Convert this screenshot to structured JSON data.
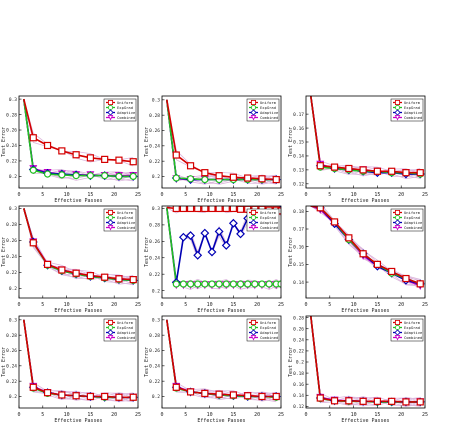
{
  "figure": {
    "background": "#ffffff"
  },
  "legend_labels": [
    "Uniform",
    "ExpGrad",
    "Adaptive",
    "Combined"
  ],
  "colors": {
    "Uniform": "#d40000",
    "ExpGrad": "#22c022",
    "Adaptive": "#0000b4",
    "Combined": "#c800c8",
    "spread": "#dcb6dc"
  },
  "chart_data": [
    {
      "type": "line",
      "xlabel": "Effective Passes",
      "ylabel": "Test Error",
      "xlim": [
        0,
        25
      ],
      "ylim": [
        0.185,
        0.304
      ],
      "xticks": [
        "0",
        "5",
        "10",
        "15",
        "20",
        "25"
      ],
      "yticks": [
        {
          "v": 0.2,
          "label": "0.2"
        },
        {
          "v": 0.22,
          "label": "0.22"
        },
        {
          "v": 0.24,
          "label": "0.24"
        },
        {
          "v": 0.26,
          "label": "0.26"
        },
        {
          "v": 0.28,
          "label": "0.28"
        },
        {
          "v": 0.3,
          "label": "0.3"
        }
      ],
      "x": [
        1,
        3,
        6,
        9,
        12,
        15,
        18,
        21,
        24
      ],
      "series": [
        {
          "name": "Uniform",
          "values": [
            0.3,
            0.25,
            0.24,
            0.233,
            0.228,
            0.224,
            0.222,
            0.221,
            0.219
          ]
        },
        {
          "name": "ExpGrad",
          "values": [
            0.3,
            0.208,
            0.203,
            0.202,
            0.201,
            0.201,
            0.201,
            0.2,
            0.2
          ]
        },
        {
          "name": "Adaptive",
          "values": [
            0.3,
            0.209,
            0.204,
            0.203,
            0.202,
            0.201,
            0.201,
            0.2,
            0.2
          ]
        },
        {
          "name": "Combined",
          "values": [
            0.3,
            0.21,
            0.205,
            0.203,
            0.202,
            0.202,
            0.201,
            0.201,
            0.201
          ]
        }
      ]
    },
    {
      "type": "line",
      "xlabel": "Effective Passes",
      "ylabel": "Test Error",
      "xlim": [
        0,
        25
      ],
      "ylim": [
        0.185,
        0.305
      ],
      "xticks": [
        "0",
        "5",
        "10",
        "15",
        "20",
        "25"
      ],
      "yticks": [
        {
          "v": 0.2,
          "label": "0.2"
        },
        {
          "v": 0.22,
          "label": "0.22"
        },
        {
          "v": 0.24,
          "label": "0.24"
        },
        {
          "v": 0.26,
          "label": "0.26"
        },
        {
          "v": 0.28,
          "label": "0.28"
        },
        {
          "v": 0.3,
          "label": "0.3"
        }
      ],
      "x": [
        1,
        3,
        6,
        9,
        12,
        15,
        18,
        21,
        24
      ],
      "series": [
        {
          "name": "Uniform",
          "values": [
            0.3,
            0.228,
            0.214,
            0.205,
            0.201,
            0.199,
            0.198,
            0.197,
            0.196
          ]
        },
        {
          "name": "ExpGrad",
          "values": [
            0.3,
            0.198,
            0.197,
            0.196,
            0.196,
            0.196,
            0.196,
            0.196,
            0.196
          ]
        },
        {
          "name": "Adaptive",
          "values": [
            0.3,
            0.198,
            0.196,
            0.196,
            0.196,
            0.196,
            0.196,
            0.196,
            0.196
          ]
        },
        {
          "name": "Combined",
          "values": [
            0.3,
            0.197,
            0.196,
            0.196,
            0.196,
            0.196,
            0.196,
            0.196,
            0.196
          ]
        }
      ]
    },
    {
      "type": "line",
      "xlabel": "Effective Passes",
      "ylabel": "Test Error",
      "xlim": [
        0,
        25
      ],
      "ylim": [
        0.117,
        0.183
      ],
      "xticks": [
        "0",
        "5",
        "10",
        "15",
        "20",
        "25"
      ],
      "yticks": [
        {
          "v": 0.12,
          "label": "0.12"
        },
        {
          "v": 0.13,
          "label": "0.13"
        },
        {
          "v": 0.14,
          "label": "0.14"
        },
        {
          "v": 0.15,
          "label": "0.15"
        },
        {
          "v": 0.16,
          "label": "0.16"
        },
        {
          "v": 0.17,
          "label": "0.17"
        }
      ],
      "x": [
        1,
        3,
        6,
        9,
        12,
        15,
        18,
        21,
        24
      ],
      "series": [
        {
          "name": "Uniform",
          "values": [
            0.183,
            0.133,
            0.132,
            0.131,
            0.13,
            0.129,
            0.129,
            0.128,
            0.128
          ]
        },
        {
          "name": "ExpGrad",
          "values": [
            0.183,
            0.132,
            0.131,
            0.13,
            0.129,
            0.129,
            0.128,
            0.128,
            0.127
          ]
        },
        {
          "name": "Adaptive",
          "values": [
            0.183,
            0.133,
            0.131,
            0.13,
            0.129,
            0.128,
            0.128,
            0.127,
            0.127
          ]
        },
        {
          "name": "Combined",
          "values": [
            0.183,
            0.134,
            0.131,
            0.13,
            0.13,
            0.129,
            0.128,
            0.128,
            0.127
          ]
        }
      ]
    },
    {
      "type": "line",
      "xlabel": "Effective Passes",
      "ylabel": "Test Error",
      "xlim": [
        0,
        25
      ],
      "ylim": [
        0.188,
        0.303
      ],
      "xticks": [
        "0",
        "5",
        "10",
        "15",
        "20",
        "25"
      ],
      "yticks": [
        {
          "v": 0.2,
          "label": "0.2"
        },
        {
          "v": 0.22,
          "label": "0.22"
        },
        {
          "v": 0.24,
          "label": "0.24"
        },
        {
          "v": 0.26,
          "label": "0.26"
        },
        {
          "v": 0.28,
          "label": "0.28"
        },
        {
          "v": 0.3,
          "label": "0.3"
        }
      ],
      "x": [
        1,
        3,
        6,
        9,
        12,
        15,
        18,
        21,
        24
      ],
      "series": [
        {
          "name": "Uniform",
          "values": [
            0.3,
            0.257,
            0.23,
            0.223,
            0.219,
            0.216,
            0.214,
            0.212,
            0.211
          ]
        },
        {
          "name": "ExpGrad",
          "values": [
            0.3,
            0.257,
            0.229,
            0.222,
            0.218,
            0.215,
            0.213,
            0.211,
            0.21
          ]
        },
        {
          "name": "Adaptive",
          "values": [
            0.3,
            0.258,
            0.229,
            0.222,
            0.218,
            0.215,
            0.213,
            0.211,
            0.21
          ]
        },
        {
          "name": "Combined",
          "values": [
            0.3,
            0.258,
            0.23,
            0.223,
            0.219,
            0.216,
            0.213,
            0.212,
            0.211
          ]
        }
      ]
    },
    {
      "type": "line",
      "xlabel": "Effective Passes",
      "ylabel": "Test Error",
      "xlim": [
        0,
        25
      ],
      "ylim": [
        0.191,
        0.303
      ],
      "xticks": [
        "0",
        "5",
        "10",
        "15",
        "20",
        "25"
      ],
      "yticks": [
        {
          "v": 0.2,
          "label": "0.2"
        },
        {
          "v": 0.22,
          "label": "0.22"
        },
        {
          "v": 0.24,
          "label": "0.24"
        },
        {
          "v": 0.26,
          "label": "0.26"
        },
        {
          "v": 0.28,
          "label": "0.28"
        },
        {
          "v": 0.3,
          "label": "0.3"
        }
      ],
      "x": [
        1,
        3,
        4.5,
        6,
        7.5,
        9,
        10.5,
        12,
        13.5,
        15,
        16.5,
        18,
        19.5,
        21,
        22.5,
        24,
        25
      ],
      "series": [
        {
          "name": "Uniform",
          "values": [
            0.301,
            0.3,
            0.3,
            0.3,
            0.3,
            0.3,
            0.3,
            0.3,
            0.3,
            0.3,
            0.299,
            0.299,
            0.299,
            0.299,
            0.298,
            0.298,
            0.297
          ]
        },
        {
          "name": "ExpGrad",
          "values": [
            0.301,
            0.208,
            0.208,
            0.208,
            0.208,
            0.208,
            0.208,
            0.208,
            0.208,
            0.208,
            0.208,
            0.208,
            0.208,
            0.208,
            0.208,
            0.208,
            0.208
          ]
        },
        {
          "name": "Adaptive",
          "values": [
            0.301,
            0.21,
            0.265,
            0.267,
            0.243,
            0.27,
            0.247,
            0.272,
            0.255,
            0.282,
            0.269,
            0.288,
            0.284,
            0.292,
            0.29,
            0.295,
            0.299
          ]
        },
        {
          "name": "Combined",
          "values": [
            0.301,
            0.207,
            0.207,
            0.207,
            0.207,
            0.207,
            0.207,
            0.207,
            0.207,
            0.207,
            0.207,
            0.207,
            0.207,
            0.207,
            0.207,
            0.207,
            0.207
          ]
        }
      ]
    },
    {
      "type": "line",
      "xlabel": "Effective Passes",
      "ylabel": "Test Error",
      "xlim": [
        0,
        25
      ],
      "ylim": [
        0.131,
        0.183
      ],
      "xticks": [
        "0",
        "5",
        "10",
        "15",
        "20",
        "25"
      ],
      "yticks": [
        {
          "v": 0.14,
          "label": "0.14"
        },
        {
          "v": 0.15,
          "label": "0.15"
        },
        {
          "v": 0.16,
          "label": "0.16"
        },
        {
          "v": 0.17,
          "label": "0.17"
        },
        {
          "v": 0.18,
          "label": "0.18"
        }
      ],
      "x": [
        1,
        3,
        6,
        9,
        12,
        15,
        18,
        21,
        24
      ],
      "series": [
        {
          "name": "Uniform",
          "values": [
            0.183,
            0.182,
            0.174,
            0.165,
            0.156,
            0.15,
            0.146,
            0.142,
            0.139
          ]
        },
        {
          "name": "ExpGrad",
          "values": [
            0.183,
            0.182,
            0.174,
            0.164,
            0.156,
            0.15,
            0.145,
            0.142,
            0.139
          ]
        },
        {
          "name": "Adaptive",
          "values": [
            0.183,
            0.182,
            0.173,
            0.164,
            0.156,
            0.149,
            0.145,
            0.141,
            0.139
          ]
        },
        {
          "name": "Combined",
          "values": [
            0.183,
            0.181,
            0.173,
            0.164,
            0.155,
            0.149,
            0.145,
            0.141,
            0.138
          ]
        }
      ]
    },
    {
      "type": "line",
      "xlabel": "Effective Passes",
      "ylabel": "Test Error",
      "xlim": [
        0,
        25
      ],
      "ylim": [
        0.185,
        0.305
      ],
      "xticks": [
        "0",
        "5",
        "10",
        "15",
        "20",
        "25"
      ],
      "yticks": [
        {
          "v": 0.2,
          "label": "0.2"
        },
        {
          "v": 0.22,
          "label": "0.22"
        },
        {
          "v": 0.24,
          "label": "0.24"
        },
        {
          "v": 0.26,
          "label": "0.26"
        },
        {
          "v": 0.28,
          "label": "0.28"
        },
        {
          "v": 0.3,
          "label": "0.3"
        }
      ],
      "x": [
        1,
        3,
        6,
        9,
        12,
        15,
        18,
        21,
        24
      ],
      "series": [
        {
          "name": "Uniform",
          "values": [
            0.3,
            0.212,
            0.205,
            0.202,
            0.201,
            0.2,
            0.2,
            0.199,
            0.199
          ]
        },
        {
          "name": "ExpGrad",
          "values": [
            0.3,
            0.211,
            0.204,
            0.202,
            0.201,
            0.2,
            0.199,
            0.199,
            0.199
          ]
        },
        {
          "name": "Adaptive",
          "values": [
            0.3,
            0.212,
            0.205,
            0.202,
            0.201,
            0.2,
            0.199,
            0.199,
            0.199
          ]
        },
        {
          "name": "Combined",
          "values": [
            0.3,
            0.213,
            0.205,
            0.202,
            0.201,
            0.2,
            0.2,
            0.199,
            0.199
          ]
        }
      ]
    },
    {
      "type": "line",
      "xlabel": "Effective Passes",
      "ylabel": "Test Error",
      "xlim": [
        0,
        25
      ],
      "ylim": [
        0.185,
        0.305
      ],
      "xticks": [
        "0",
        "5",
        "10",
        "15",
        "20",
        "25"
      ],
      "yticks": [
        {
          "v": 0.2,
          "label": "0.2"
        },
        {
          "v": 0.22,
          "label": "0.22"
        },
        {
          "v": 0.24,
          "label": "0.24"
        },
        {
          "v": 0.26,
          "label": "0.26"
        },
        {
          "v": 0.28,
          "label": "0.28"
        },
        {
          "v": 0.3,
          "label": "0.3"
        }
      ],
      "x": [
        1,
        3,
        6,
        9,
        12,
        15,
        18,
        21,
        24
      ],
      "series": [
        {
          "name": "Uniform",
          "values": [
            0.3,
            0.212,
            0.206,
            0.204,
            0.203,
            0.202,
            0.201,
            0.2,
            0.2
          ]
        },
        {
          "name": "ExpGrad",
          "values": [
            0.3,
            0.211,
            0.206,
            0.204,
            0.202,
            0.201,
            0.2,
            0.2,
            0.199
          ]
        },
        {
          "name": "Adaptive",
          "values": [
            0.3,
            0.212,
            0.206,
            0.204,
            0.202,
            0.201,
            0.2,
            0.2,
            0.2
          ]
        },
        {
          "name": "Combined",
          "values": [
            0.3,
            0.213,
            0.206,
            0.204,
            0.203,
            0.202,
            0.201,
            0.2,
            0.2
          ]
        }
      ]
    },
    {
      "type": "line",
      "xlabel": "Effective Passes",
      "ylabel": "Test Error",
      "xlim": [
        0,
        25
      ],
      "ylim": [
        0.117,
        0.283
      ],
      "xticks": [
        "0",
        "5",
        "10",
        "15",
        "20",
        "25"
      ],
      "yticks": [
        {
          "v": 0.12,
          "label": "0.12"
        },
        {
          "v": 0.14,
          "label": "0.14"
        },
        {
          "v": 0.16,
          "label": "0.16"
        },
        {
          "v": 0.18,
          "label": "0.18"
        },
        {
          "v": 0.2,
          "label": "0.2"
        },
        {
          "v": 0.22,
          "label": "0.22"
        },
        {
          "v": 0.24,
          "label": "0.24"
        },
        {
          "v": 0.26,
          "label": "0.26"
        },
        {
          "v": 0.28,
          "label": "0.28"
        }
      ],
      "x": [
        1,
        3,
        6,
        9,
        12,
        15,
        18,
        21,
        24
      ],
      "series": [
        {
          "name": "Uniform",
          "values": [
            0.283,
            0.135,
            0.13,
            0.13,
            0.129,
            0.129,
            0.129,
            0.128,
            0.128
          ]
        },
        {
          "name": "ExpGrad",
          "values": [
            0.283,
            0.134,
            0.13,
            0.129,
            0.129,
            0.128,
            0.128,
            0.128,
            0.128
          ]
        },
        {
          "name": "Adaptive",
          "values": [
            0.283,
            0.135,
            0.13,
            0.13,
            0.129,
            0.128,
            0.128,
            0.128,
            0.128
          ]
        },
        {
          "name": "Combined",
          "values": [
            0.283,
            0.136,
            0.131,
            0.13,
            0.129,
            0.129,
            0.128,
            0.128,
            0.128
          ]
        }
      ]
    }
  ]
}
